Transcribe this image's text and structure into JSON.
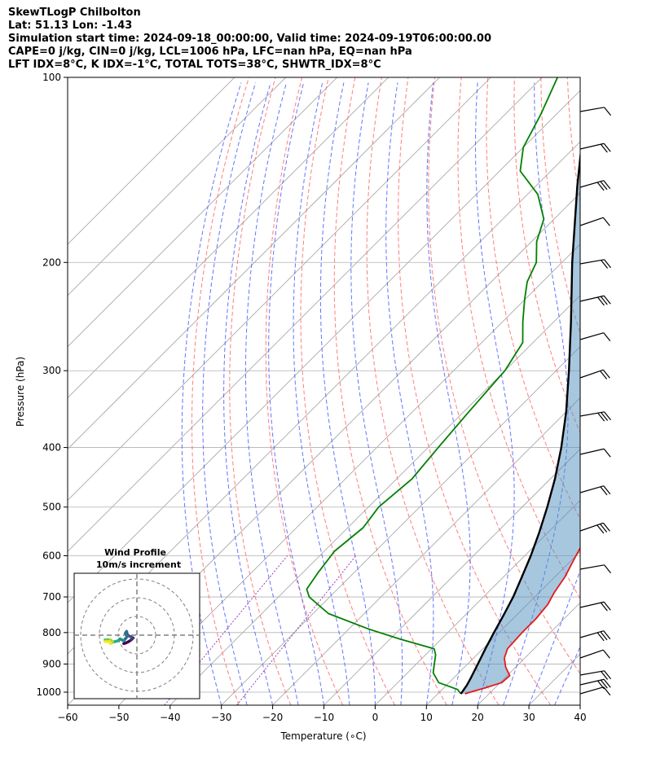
{
  "header": {
    "line1": "SkewTLogP Chilbolton",
    "line2": "Lat: 51.13   Lon: -1.43",
    "line3": "Simulation start time: 2024-09-18_00:00:00, Valid time: 2024-09-19T06:00:00.00",
    "line4": "CAPE=0 j/kg, CIN=0 j/kg, LCL=1006 hPa, LFC=nan hPa, EQ=nan hPa",
    "line5": "LFT IDX=8°C, K IDX=-1°C, TOTAL TOTS=38°C, SHWTR_IDX=8°C"
  },
  "colors": {
    "temperature": "#e41a1c",
    "dewpoint": "#008000",
    "parcel": "#000000",
    "cin_fill": "#4f8fc0",
    "dry_adiabat": "#ff6666",
    "moist_adiabat": "#4a5bff",
    "mixing_ratio": "#9b3fb5",
    "isotherm": "#a0a0a0"
  },
  "chart_data": {
    "type": "line",
    "title": "SkewTLogP Chilbolton",
    "xlabel": "Temperature (∘C)",
    "ylabel": "Pressure (hPa)",
    "xlim": [
      -60,
      40
    ],
    "ylim": [
      1050,
      100
    ],
    "x_ticks": [
      -60,
      -50,
      -40,
      -30,
      -20,
      -10,
      0,
      10,
      20,
      30,
      40
    ],
    "x_tick_labels": [
      "−60",
      "−50",
      "−40",
      "−30",
      "−20",
      "−10",
      "0",
      "10",
      "20",
      "30",
      "40"
    ],
    "y_ticks": [
      100,
      200,
      300,
      400,
      500,
      600,
      700,
      800,
      900,
      1000
    ],
    "y_tick_labels": [
      "100",
      "200",
      "300",
      "400",
      "500",
      "600",
      "700",
      "800",
      "900",
      "1000"
    ],
    "series": [
      {
        "name": "Temperature",
        "values": [
          [
            1006,
            15.3
          ],
          [
            1000,
            16
          ],
          [
            985,
            18
          ],
          [
            965,
            20.3
          ],
          [
            940,
            20.5
          ],
          [
            910,
            18
          ],
          [
            880,
            16
          ],
          [
            850,
            14.8
          ],
          [
            800,
            14.5
          ],
          [
            760,
            14.5
          ],
          [
            720,
            14
          ],
          [
            690,
            13
          ],
          [
            650,
            12
          ],
          [
            600,
            10
          ],
          [
            550,
            8
          ],
          [
            500,
            5
          ],
          [
            450,
            1.5
          ],
          [
            400,
            -2
          ],
          [
            350,
            -6.5
          ],
          [
            300,
            -11.5
          ],
          [
            270,
            -15
          ],
          [
            240,
            -19.5
          ],
          [
            225,
            -20
          ],
          [
            210,
            -22
          ],
          [
            200,
            -24
          ],
          [
            185,
            -26
          ],
          [
            170,
            -30
          ],
          [
            155,
            -35
          ],
          [
            140,
            -40
          ],
          [
            125,
            -46
          ],
          [
            115,
            -50
          ],
          [
            100,
            -56
          ]
        ]
      },
      {
        "name": "Dewpoint",
        "values": [
          [
            1006,
            14.5
          ],
          [
            990,
            13
          ],
          [
            965,
            8
          ],
          [
            930,
            5
          ],
          [
            900,
            3.5
          ],
          [
            870,
            2
          ],
          [
            850,
            0.5
          ],
          [
            820,
            -8
          ],
          [
            790,
            -16
          ],
          [
            745,
            -27
          ],
          [
            700,
            -34
          ],
          [
            680,
            -36
          ],
          [
            640,
            -37
          ],
          [
            590,
            -38
          ],
          [
            540,
            -37
          ],
          [
            500,
            -38
          ],
          [
            450,
            -37
          ],
          [
            400,
            -38
          ],
          [
            350,
            -39
          ],
          [
            300,
            -40
          ],
          [
            270,
            -42
          ],
          [
            250,
            -46
          ],
          [
            230,
            -50
          ],
          [
            215,
            -53
          ],
          [
            200,
            -55
          ],
          [
            185,
            -59
          ],
          [
            170,
            -62
          ],
          [
            155,
            -68
          ],
          [
            142,
            -76
          ],
          [
            130,
            -80
          ],
          [
            115,
            -83
          ],
          [
            100,
            -87
          ]
        ]
      },
      {
        "name": "Parcel",
        "values": [
          [
            1006,
            14.5
          ],
          [
            975,
            14
          ],
          [
            950,
            13.4
          ],
          [
            900,
            12
          ],
          [
            850,
            10.5
          ],
          [
            800,
            9
          ],
          [
            750,
            7.5
          ],
          [
            700,
            5.8
          ],
          [
            650,
            3.6
          ],
          [
            600,
            1.2
          ],
          [
            550,
            -1.7
          ],
          [
            500,
            -5.1
          ],
          [
            450,
            -9.1
          ],
          [
            400,
            -14
          ],
          [
            350,
            -20
          ],
          [
            300,
            -27.5
          ],
          [
            250,
            -36.6
          ],
          [
            200,
            -48
          ],
          [
            150,
            -62
          ],
          [
            125,
            -70.5
          ],
          [
            100,
            -80.8
          ]
        ]
      }
    ],
    "inset": {
      "title": "Wind Profile",
      "subtitle": "10m/s increment",
      "ring_step_ms": 10,
      "rings": 3,
      "hodograph_uv": [
        [
          -7,
          -4.5
        ],
        [
          -6,
          -4.2
        ],
        [
          -4.5,
          -3.5
        ],
        [
          -3,
          -2.5
        ],
        [
          -2,
          -1.5
        ],
        [
          -3,
          -1
        ],
        [
          -5,
          0
        ],
        [
          -5.5,
          2
        ],
        [
          -6.2,
          1
        ],
        [
          -5,
          -0.5
        ],
        [
          -7,
          -3
        ],
        [
          -9,
          -2
        ],
        [
          -10,
          -3
        ],
        [
          -12,
          -3.5
        ],
        [
          -14,
          -4
        ],
        [
          -16,
          -3
        ],
        [
          -17,
          -2.5
        ],
        [
          -14,
          -2.5
        ],
        [
          -13,
          -3.5
        ],
        [
          -14,
          -4.5
        ],
        [
          -15,
          -3.5
        ],
        [
          -17,
          -3.5
        ]
      ]
    }
  }
}
